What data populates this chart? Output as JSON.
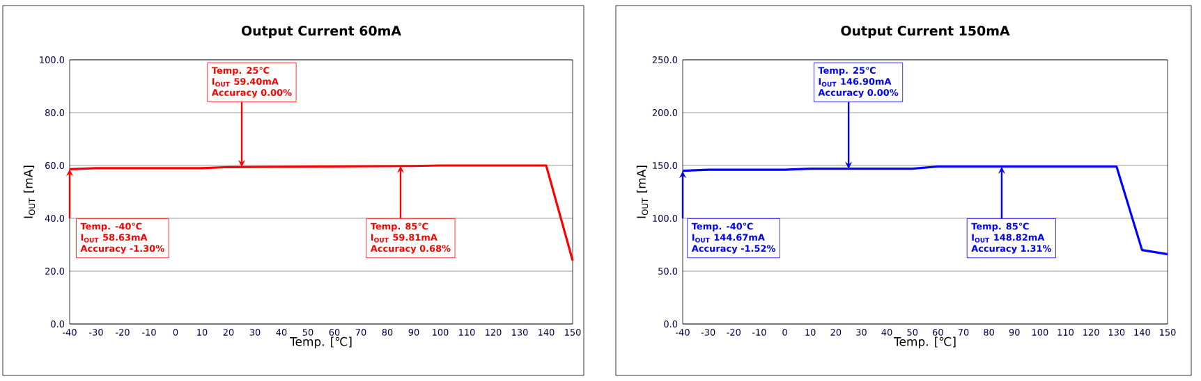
{
  "chart_data": [
    {
      "type": "line",
      "title": "Output Current 60mA",
      "xlabel": "Temp. [℃]",
      "ylabel": "I$_{OUT}$ [mA]",
      "x": [
        -40,
        -30,
        10,
        20,
        90,
        100,
        140,
        150
      ],
      "series": [
        {
          "color": "#ff0000",
          "values": [
            58.6,
            59.0,
            59.0,
            59.4,
            59.8,
            60.0,
            60.0,
            24.0
          ]
        }
      ],
      "xlim": [
        -40,
        150
      ],
      "xticks": [
        -40,
        -30,
        -20,
        -10,
        0,
        10,
        20,
        30,
        40,
        50,
        60,
        70,
        80,
        90,
        100,
        110,
        120,
        130,
        140,
        150
      ],
      "ylim": [
        0,
        100
      ],
      "yticks": [
        {
          "value": 0,
          "label": "0.0"
        },
        {
          "value": 20,
          "label": "20.0"
        },
        {
          "value": 40,
          "label": "40.0"
        },
        {
          "value": 60,
          "label": "60.0"
        },
        {
          "value": 80,
          "label": "80.0"
        },
        {
          "value": 100,
          "label": "100.0"
        }
      ],
      "grid": "y",
      "annotations": [
        {
          "text": "Temp. -40℃",
          "x": -40,
          "y": 58.63
        },
        "I$_{OUT}$ 58.63mA",
        "Accuracy -1.30%",
        "Temp. 25℃",
        "I$_{OUT}$ 59.40mA",
        {
          "text": "Accuracy 0.00%",
          "x": 25,
          "y": 59.4
        },
        {
          "text": "Temp. 85℃",
          "x": 85,
          "y": 59.81
        },
        "I$_{OUT}$ 59.81mA",
        "Accuracy 0.68%"
      ]
    },
    {
      "type": "line",
      "title": "Output Current 150mA",
      "xlabel": "Temp. [℃]",
      "ylabel": "I$_{OUT}$ [mA]",
      "x": [
        -40,
        -30,
        0,
        10,
        50,
        60,
        130,
        140,
        150
      ],
      "series": [
        {
          "color": "#0000ff",
          "values": [
            145,
            146,
            146,
            147,
            147,
            149,
            149,
            70,
            66
          ]
        }
      ],
      "xlim": [
        -40,
        150
      ],
      "xticks": [
        -40,
        -30,
        -20,
        -10,
        0,
        10,
        20,
        30,
        40,
        50,
        60,
        70,
        80,
        90,
        100,
        110,
        120,
        130,
        140,
        150
      ],
      "ylim": [
        0,
        250
      ],
      "yticks": [
        {
          "value": 0,
          "label": "0.0"
        },
        {
          "value": 50,
          "label": "50.0"
        },
        {
          "value": 100,
          "label": "100.0"
        },
        {
          "value": 150,
          "label": "150.0"
        },
        {
          "value": 200,
          "label": "200.0"
        },
        {
          "value": 250,
          "label": "250.0"
        }
      ],
      "grid": "y",
      "annotations": [
        {
          "text": "Temp. -40℃",
          "x": -40,
          "y": 144.67
        },
        "I$_{OUT}$ 144.67mA",
        "Accuracy -1.52%",
        "Temp. 25℃",
        "I$_{OUT}$ 146.90mA",
        {
          "text": "Accuracy 0.00%",
          "x": 25,
          "y": 146.9
        },
        {
          "text": "Temp. 85℃",
          "x": 85,
          "y": 148.82
        },
        "I$_{OUT}$ 148.82mA",
        "Accuracy 1.31%"
      ]
    }
  ]
}
